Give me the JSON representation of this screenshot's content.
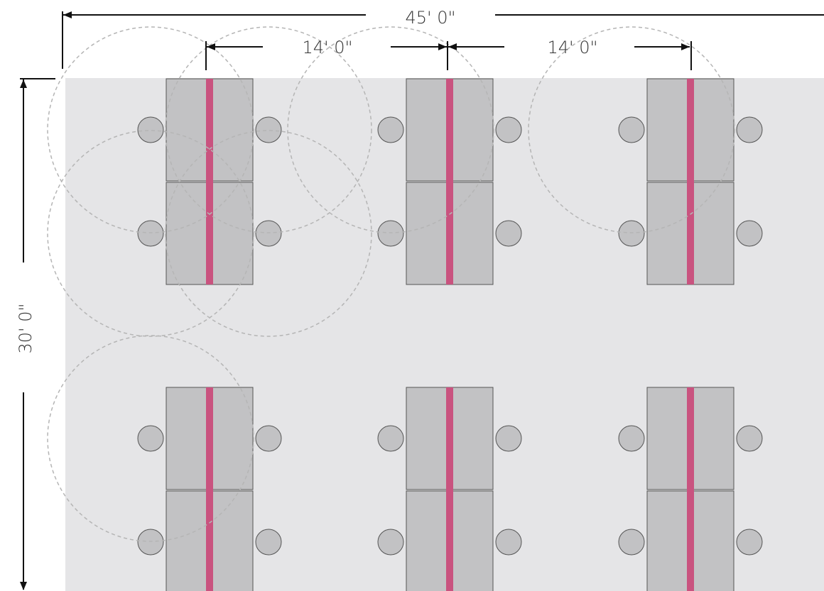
{
  "dimensions": {
    "overall_width": "45' 0\"",
    "overall_depth": "30' 0\"",
    "spacing_1": "14' 0\"",
    "spacing_2": "14' 0\""
  },
  "colors": {
    "floor": "#e5e5e7",
    "desk": "#c2c2c4",
    "divider": "#c9537f",
    "chair": "#c2c2c4",
    "outline": "#555555",
    "dimension_line": "#111111",
    "radius_circle": "#b5b5b5"
  }
}
